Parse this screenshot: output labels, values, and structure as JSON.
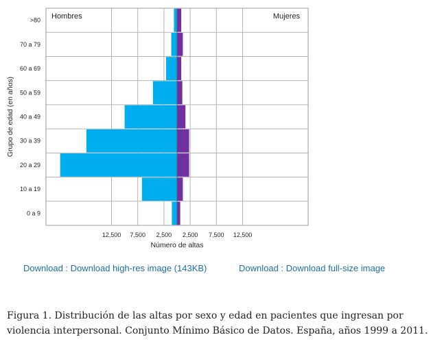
{
  "chart_data": {
    "type": "bar",
    "orientation": "horizontal",
    "layout": "population-pyramid",
    "title": "",
    "xlabel": "Número de altas",
    "ylabel": "Grupo de edad (en años)",
    "categories": [
      "0 a 9",
      "10 a 19",
      "20 a 29",
      "30 a 39",
      "40 a 49",
      "50 a 59",
      "60 a 69",
      "70 a 79",
      ">80"
    ],
    "series": [
      {
        "name": "Hombres",
        "side": "left",
        "color": "#00aeef",
        "values": [
          1000,
          6700,
          22300,
          17300,
          10000,
          4600,
          2100,
          1100,
          600
        ]
      },
      {
        "name": "Mujeres",
        "side": "right",
        "color": "#7030a0",
        "values": [
          600,
          1100,
          2300,
          2300,
          1600,
          1000,
          800,
          1100,
          800
        ]
      }
    ],
    "xticks": [
      -12500,
      -7500,
      -2500,
      2500,
      7500,
      12500
    ],
    "xtick_labels": [
      "12,500",
      "7,500",
      "2,500",
      "2,500",
      "7,500",
      "12,500"
    ],
    "xlim": [
      -25000,
      25000
    ],
    "grid": true,
    "legend_placement": "top corners"
  },
  "links": {
    "highres": "Download : Download high-res image (143KB)",
    "fullsize": "Download : Download full-size image"
  },
  "caption": "Figura 1. Distribución de las altas por sexo y edad en pacientes que ingresan por violencia interpersonal. Conjunto Mínimo Básico de Datos. España, años 1999 a 2011."
}
